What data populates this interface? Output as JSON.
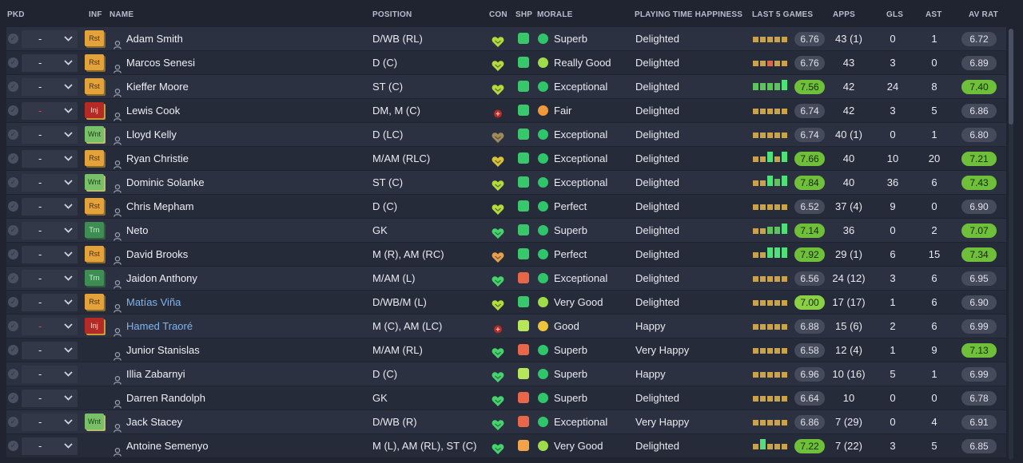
{
  "columns": {
    "pkd": "PKD",
    "inf": "INF",
    "name": "NAME",
    "position": "POSITION",
    "con": "CON",
    "shp": "SHP",
    "morale": "MORALE",
    "pth": "PLAYING TIME HAPPINESS",
    "last5": "LAST 5 GAMES",
    "apps": "APPS",
    "gls": "GLS",
    "ast": "AST",
    "avrat": "AV RAT"
  },
  "colors": {
    "rst": "#e3a23a",
    "inj": "#b52a24",
    "wnt": "#78bf6a",
    "trn": "#3e8e54",
    "good": "#2fc56a",
    "link": "#7fb4ee"
  },
  "players": [
    {
      "pkd": "-",
      "inf": "Rst",
      "name": "Adam Smith",
      "position": "D/WB (RL)",
      "con": "lime",
      "shp": "good",
      "morale_icon": "green",
      "morale": "Superb",
      "pth": "Delighted",
      "last5": [
        "y",
        "y",
        "y",
        "y",
        "y"
      ],
      "last_rating": "6.76",
      "last_hl": "",
      "apps": "43 (1)",
      "gls": "0",
      "ast": "1",
      "avrat": "6.72",
      "av_hl": ""
    },
    {
      "pkd": "-",
      "inf": "Rst",
      "name": "Marcos Senesi",
      "position": "D (C)",
      "con": "lime",
      "shp": "good",
      "morale_icon": "lime",
      "morale": "Really Good",
      "pth": "Delighted",
      "last5": [
        "y",
        "y",
        "r",
        "y",
        "y"
      ],
      "last_rating": "6.76",
      "last_hl": "",
      "apps": "43",
      "gls": "3",
      "ast": "0",
      "avrat": "6.89",
      "av_hl": ""
    },
    {
      "pkd": "-",
      "inf": "Rst",
      "name": "Kieffer Moore",
      "position": "ST (C)",
      "con": "lime",
      "shp": "good",
      "morale_icon": "green",
      "morale": "Exceptional",
      "pth": "Delighted",
      "last5": [
        "g",
        "g",
        "g",
        "g",
        "G"
      ],
      "last_rating": "7.56",
      "last_hl": "gr",
      "apps": "42",
      "gls": "24",
      "ast": "8",
      "avrat": "7.40",
      "av_hl": "gr"
    },
    {
      "pkd": "-",
      "inf": "Inj",
      "name": "Lewis Cook",
      "position": "DM, M (C)",
      "con": "injured",
      "shp": "good",
      "morale_icon": "orange",
      "morale": "Fair",
      "pth": "Delighted",
      "last5": [
        "y",
        "y",
        "y",
        "y",
        "y"
      ],
      "last_rating": "6.74",
      "last_hl": "",
      "apps": "42",
      "gls": "3",
      "ast": "5",
      "avrat": "6.86",
      "av_hl": ""
    },
    {
      "pkd": "-",
      "inf": "Wnt",
      "name": "Lloyd Kelly",
      "position": "D (LC)",
      "con": "brown",
      "shp": "good",
      "morale_icon": "green",
      "morale": "Exceptional",
      "pth": "Delighted",
      "last5": [
        "y",
        "y",
        "y",
        "y",
        "y"
      ],
      "last_rating": "6.74",
      "last_hl": "",
      "apps": "40 (1)",
      "gls": "0",
      "ast": "1",
      "avrat": "6.80",
      "av_hl": ""
    },
    {
      "pkd": "-",
      "inf": "Rst",
      "name": "Ryan Christie",
      "position": "M/AM (RLC)",
      "con": "yellow",
      "shp": "good",
      "morale_icon": "green",
      "morale": "Exceptional",
      "pth": "Delighted",
      "last5": [
        "y",
        "y",
        "G",
        "y",
        "G"
      ],
      "last_rating": "7.66",
      "last_hl": "gr",
      "apps": "40",
      "gls": "10",
      "ast": "20",
      "avrat": "7.21",
      "av_hl": "gr"
    },
    {
      "pkd": "-",
      "inf": "Wnt",
      "name": "Dominic Solanke",
      "position": "ST (C)",
      "con": "lime",
      "shp": "good",
      "morale_icon": "green",
      "morale": "Exceptional",
      "pth": "Delighted",
      "last5": [
        "y",
        "y",
        "G",
        "g",
        "G"
      ],
      "last_rating": "7.84",
      "last_hl": "gr",
      "apps": "40",
      "gls": "36",
      "ast": "6",
      "avrat": "7.43",
      "av_hl": "gr"
    },
    {
      "pkd": "-",
      "inf": "Rst",
      "name": "Chris Mepham",
      "position": "D (C)",
      "con": "lime",
      "shp": "good",
      "morale_icon": "green",
      "morale": "Perfect",
      "pth": "Delighted",
      "last5": [
        "y",
        "y",
        "y",
        "y",
        "y"
      ],
      "last_rating": "6.52",
      "last_hl": "",
      "apps": "37 (4)",
      "gls": "9",
      "ast": "0",
      "avrat": "6.90",
      "av_hl": ""
    },
    {
      "pkd": "-",
      "inf": "Trn",
      "name": "Neto",
      "position": "GK",
      "con": "green",
      "shp": "good",
      "morale_icon": "green",
      "morale": "Superb",
      "pth": "Delighted",
      "last5": [
        "y",
        "y",
        "g",
        "g",
        "G"
      ],
      "last_rating": "7.14",
      "last_hl": "gr",
      "apps": "36",
      "gls": "0",
      "ast": "2",
      "avrat": "7.07",
      "av_hl": "gr"
    },
    {
      "pkd": "-",
      "inf": "Rst",
      "name": "David Brooks",
      "position": "M (R), AM (RC)",
      "con": "orange",
      "shp": "good",
      "morale_icon": "green",
      "morale": "Perfect",
      "pth": "Delighted",
      "last5": [
        "y",
        "y",
        "G",
        "G",
        "G"
      ],
      "last_rating": "7.92",
      "last_hl": "gr",
      "apps": "29 (1)",
      "gls": "6",
      "ast": "15",
      "avrat": "7.34",
      "av_hl": "gr"
    },
    {
      "pkd": "-",
      "inf": "Trn",
      "name": "Jaidon Anthony",
      "position": "M/AM (L)",
      "con": "green",
      "shp": "bad",
      "morale_icon": "green",
      "morale": "Exceptional",
      "pth": "Delighted",
      "last5": [
        "y",
        "y",
        "y",
        "y",
        "y"
      ],
      "last_rating": "6.56",
      "last_hl": "",
      "apps": "24 (12)",
      "gls": "3",
      "ast": "6",
      "avrat": "6.95",
      "av_hl": ""
    },
    {
      "pkd": "-",
      "inf": "Rst",
      "name": "Matías Viña",
      "position": "D/WB/M (L)",
      "con": "lime",
      "shp": "good",
      "morale_icon": "lime",
      "morale": "Very Good",
      "pth": "Delighted",
      "last5": [
        "y",
        "y",
        "y",
        "y",
        "y"
      ],
      "last_rating": "7.00",
      "last_hl": "lgr",
      "apps": "17 (17)",
      "gls": "1",
      "ast": "6",
      "avrat": "6.90",
      "av_hl": "",
      "link": true
    },
    {
      "pkd": "-",
      "inf": "Inj",
      "name": "Hamed Traoré",
      "position": "M (C), AM (LC)",
      "con": "injured",
      "shp": "ok",
      "morale_icon": "yellow",
      "morale": "Good",
      "pth": "Happy",
      "last5": [
        "y",
        "y",
        "y",
        "y",
        "y"
      ],
      "last_rating": "6.88",
      "last_hl": "",
      "apps": "15 (6)",
      "gls": "2",
      "ast": "6",
      "avrat": "6.99",
      "av_hl": "",
      "link": true
    },
    {
      "pkd": "-",
      "inf": "",
      "name": "Junior Stanislas",
      "position": "M/AM (RL)",
      "con": "green",
      "shp": "bad",
      "morale_icon": "green",
      "morale": "Superb",
      "pth": "Very Happy",
      "last5": [
        "y",
        "y",
        "y",
        "y",
        "y"
      ],
      "last_rating": "6.58",
      "last_hl": "",
      "apps": "12 (4)",
      "gls": "1",
      "ast": "9",
      "avrat": "7.13",
      "av_hl": "gr"
    },
    {
      "pkd": "-",
      "inf": "",
      "name": "Illia Zabarnyi",
      "position": "D (C)",
      "con": "green",
      "shp": "ok",
      "morale_icon": "green",
      "morale": "Superb",
      "pth": "Happy",
      "last5": [
        "y",
        "y",
        "y",
        "y",
        "y"
      ],
      "last_rating": "6.96",
      "last_hl": "",
      "apps": "10 (16)",
      "gls": "5",
      "ast": "1",
      "avrat": "6.99",
      "av_hl": ""
    },
    {
      "pkd": "-",
      "inf": "",
      "name": "Darren Randolph",
      "position": "GK",
      "con": "green",
      "shp": "bad",
      "morale_icon": "green",
      "morale": "Superb",
      "pth": "Delighted",
      "last5": [
        "y",
        "y",
        "y",
        "y",
        "y"
      ],
      "last_rating": "6.64",
      "last_hl": "",
      "apps": "10",
      "gls": "0",
      "ast": "0",
      "avrat": "6.78",
      "av_hl": ""
    },
    {
      "pkd": "-",
      "inf": "Wnt",
      "name": "Jack Stacey",
      "position": "D/WB (R)",
      "con": "green",
      "shp": "bad",
      "morale_icon": "green",
      "morale": "Exceptional",
      "pth": "Very Happy",
      "last5": [
        "y",
        "y",
        "y",
        "y",
        "y"
      ],
      "last_rating": "6.86",
      "last_hl": "",
      "apps": "7 (29)",
      "gls": "0",
      "ast": "4",
      "avrat": "6.91",
      "av_hl": ""
    },
    {
      "pkd": "-",
      "inf": "",
      "name": "Antoine Semenyo",
      "position": "M (L), AM (RL), ST (C)",
      "con": "green",
      "shp": "mid",
      "morale_icon": "lime",
      "morale": "Very Good",
      "pth": "Delighted",
      "last5": [
        "y",
        "G",
        "y",
        "y",
        "y"
      ],
      "last_rating": "7.22",
      "last_hl": "gr",
      "apps": "7 (22)",
      "gls": "3",
      "ast": "5",
      "avrat": "6.85",
      "av_hl": ""
    }
  ]
}
